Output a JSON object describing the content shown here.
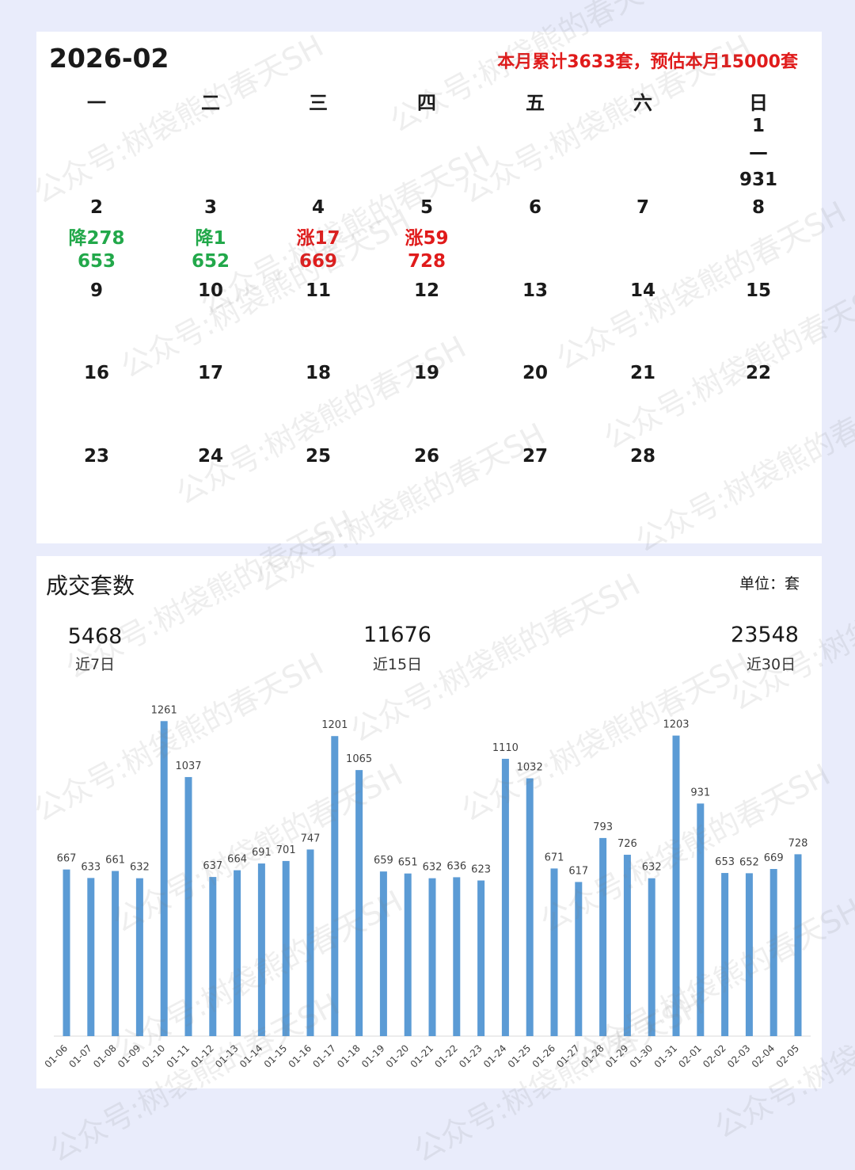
{
  "calendar": {
    "title": "2026-02",
    "summary": "本月累计3633套，预估本月15000套",
    "summary_color": "#e01b1b",
    "weekdays": [
      "一",
      "二",
      "三",
      "四",
      "五",
      "六",
      "日"
    ],
    "days": [
      {
        "day": "1",
        "col": 6,
        "row": 0,
        "change": "—",
        "count": "931",
        "trend": "none"
      },
      {
        "day": "2",
        "col": 0,
        "row": 1,
        "change": "降278",
        "count": "653",
        "trend": "down"
      },
      {
        "day": "3",
        "col": 1,
        "row": 1,
        "change": "降1",
        "count": "652",
        "trend": "down"
      },
      {
        "day": "4",
        "col": 2,
        "row": 1,
        "change": "涨17",
        "count": "669",
        "trend": "up"
      },
      {
        "day": "5",
        "col": 3,
        "row": 1,
        "change": "涨59",
        "count": "728",
        "trend": "up"
      },
      {
        "day": "6",
        "col": 4,
        "row": 1
      },
      {
        "day": "7",
        "col": 5,
        "row": 1
      },
      {
        "day": "8",
        "col": 6,
        "row": 1
      },
      {
        "day": "9",
        "col": 0,
        "row": 2
      },
      {
        "day": "10",
        "col": 1,
        "row": 2
      },
      {
        "day": "11",
        "col": 2,
        "row": 2
      },
      {
        "day": "12",
        "col": 3,
        "row": 2
      },
      {
        "day": "13",
        "col": 4,
        "row": 2
      },
      {
        "day": "14",
        "col": 5,
        "row": 2
      },
      {
        "day": "15",
        "col": 6,
        "row": 2
      },
      {
        "day": "16",
        "col": 0,
        "row": 3
      },
      {
        "day": "17",
        "col": 1,
        "row": 3
      },
      {
        "day": "18",
        "col": 2,
        "row": 3
      },
      {
        "day": "19",
        "col": 3,
        "row": 3
      },
      {
        "day": "20",
        "col": 4,
        "row": 3
      },
      {
        "day": "21",
        "col": 5,
        "row": 3
      },
      {
        "day": "22",
        "col": 6,
        "row": 3
      },
      {
        "day": "23",
        "col": 0,
        "row": 4
      },
      {
        "day": "24",
        "col": 1,
        "row": 4
      },
      {
        "day": "25",
        "col": 2,
        "row": 4
      },
      {
        "day": "26",
        "col": 3,
        "row": 4
      },
      {
        "day": "27",
        "col": 4,
        "row": 4
      },
      {
        "day": "28",
        "col": 5,
        "row": 4
      }
    ],
    "colors": {
      "up": "#e01b1b",
      "down": "#22a84a",
      "none": "#1a1a1a"
    }
  },
  "chart": {
    "title": "成交套数",
    "unit": "单位：套",
    "kpis": [
      {
        "value": "5468",
        "label": "近7日"
      },
      {
        "value": "11676",
        "label": "近15日"
      },
      {
        "value": "23548",
        "label": "近30日"
      }
    ]
  },
  "chart_data": {
    "type": "bar",
    "categories": [
      "01-06",
      "01-07",
      "01-08",
      "01-09",
      "01-10",
      "01-11",
      "01-12",
      "01-13",
      "01-14",
      "01-15",
      "01-16",
      "01-17",
      "01-18",
      "01-19",
      "01-20",
      "01-21",
      "01-22",
      "01-23",
      "01-24",
      "01-25",
      "01-26",
      "01-27",
      "01-28",
      "01-29",
      "01-30",
      "01-31",
      "02-01",
      "02-02",
      "02-03",
      "02-04",
      "02-05"
    ],
    "values": [
      667,
      633,
      661,
      632,
      1261,
      1037,
      637,
      664,
      691,
      701,
      747,
      1201,
      1065,
      659,
      651,
      632,
      636,
      623,
      1110,
      1032,
      671,
      617,
      793,
      726,
      632,
      1203,
      931,
      653,
      652,
      669,
      728
    ],
    "ylim": [
      0,
      1300
    ],
    "bar_color": "#5b9bd5",
    "data_labels": true,
    "grid": false
  },
  "watermark": "公众号:树袋熊的春天SH"
}
